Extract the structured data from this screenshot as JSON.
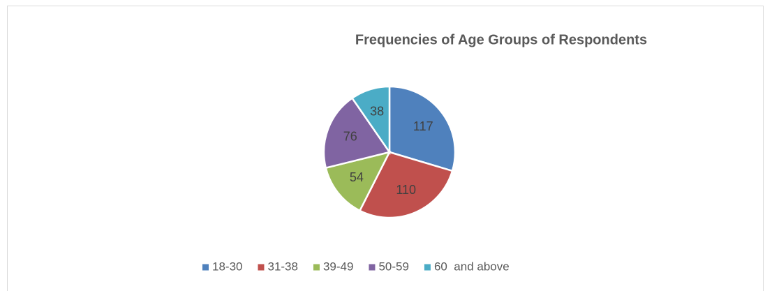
{
  "chart_data": {
    "type": "pie",
    "title": "Frequencies of Age Groups of Respondents",
    "categories": [
      "18-30",
      "31-38",
      "39-49",
      "50-59",
      "60  and above"
    ],
    "values": [
      117,
      110,
      54,
      76,
      38
    ],
    "colors": [
      "#4f81bd",
      "#c0504d",
      "#9bbb59",
      "#8064a2",
      "#4bacc6"
    ],
    "legend": "bottom"
  }
}
